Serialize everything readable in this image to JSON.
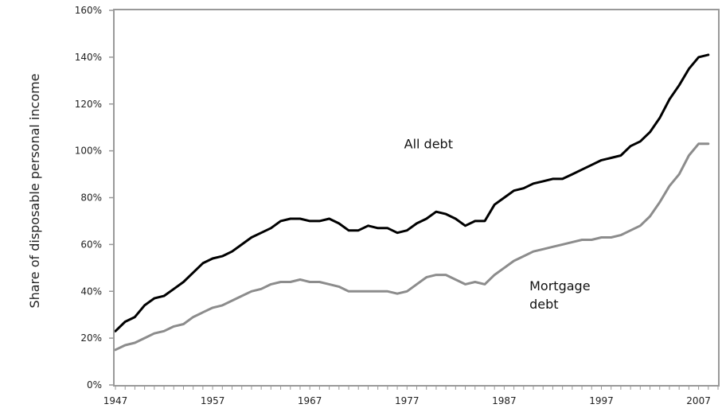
{
  "chart_data": {
    "type": "line",
    "title": "",
    "xlabel": "",
    "ylabel": "Share of disposable personal income",
    "xlim": [
      1947,
      2009
    ],
    "ylim": [
      0,
      160
    ],
    "y_ticks": [
      "0%",
      "20%",
      "40%",
      "60%",
      "80%",
      "100%",
      "120%",
      "140%",
      "160%"
    ],
    "y_tick_values": [
      0,
      20,
      40,
      60,
      80,
      100,
      120,
      140,
      160
    ],
    "x_ticks": [
      "1947",
      "1957",
      "1967",
      "1977",
      "1987",
      "1997",
      "2007"
    ],
    "x_tick_values": [
      1947,
      1957,
      1967,
      1977,
      1987,
      1997,
      2007
    ],
    "grid": false,
    "legend": "none",
    "annotations": [
      {
        "series": "all_debt",
        "lines": [
          "All debt"
        ],
        "x": 1976.7,
        "y": 101
      },
      {
        "series": "mortgage_debt",
        "lines": [
          "Mortgage",
          "debt"
        ],
        "x": 1989.6,
        "y": 40.5
      }
    ],
    "series": [
      {
        "key": "all_debt",
        "color": "#000000",
        "x": [
          1947,
          1948,
          1949,
          1950,
          1951,
          1952,
          1953,
          1954,
          1955,
          1956,
          1957,
          1958,
          1959,
          1960,
          1961,
          1962,
          1963,
          1964,
          1965,
          1966,
          1967,
          1968,
          1969,
          1970,
          1971,
          1972,
          1973,
          1974,
          1975,
          1976,
          1977,
          1978,
          1979,
          1980,
          1981,
          1982,
          1983,
          1984,
          1985,
          1986,
          1987,
          1988,
          1989,
          1990,
          1991,
          1992,
          1993,
          1994,
          1995,
          1996,
          1997,
          1998,
          1999,
          2000,
          2001,
          2002,
          2003,
          2004,
          2005,
          2006,
          2007,
          2008
        ],
        "values": [
          23,
          27,
          29,
          34,
          37,
          38,
          41,
          44,
          48,
          52,
          54,
          55,
          57,
          60,
          63,
          65,
          67,
          70,
          71,
          71,
          70,
          70,
          71,
          69,
          66,
          66,
          68,
          67,
          67,
          65,
          66,
          69,
          71,
          74,
          73,
          71,
          68,
          70,
          70,
          77,
          80,
          83,
          84,
          86,
          87,
          88,
          88,
          90,
          92,
          94,
          96,
          97,
          98,
          102,
          104,
          108,
          114,
          122,
          128,
          135,
          140,
          141
        ]
      },
      {
        "key": "mortgage_debt",
        "color": "#8c8c8c",
        "x": [
          1947,
          1948,
          1949,
          1950,
          1951,
          1952,
          1953,
          1954,
          1955,
          1956,
          1957,
          1958,
          1959,
          1960,
          1961,
          1962,
          1963,
          1964,
          1965,
          1966,
          1967,
          1968,
          1969,
          1970,
          1971,
          1972,
          1973,
          1974,
          1975,
          1976,
          1977,
          1978,
          1979,
          1980,
          1981,
          1982,
          1983,
          1984,
          1985,
          1986,
          1987,
          1988,
          1989,
          1990,
          1991,
          1992,
          1993,
          1994,
          1995,
          1996,
          1997,
          1998,
          1999,
          2000,
          2001,
          2002,
          2003,
          2004,
          2005,
          2006,
          2007,
          2008
        ],
        "values": [
          15,
          17,
          18,
          20,
          22,
          23,
          25,
          26,
          29,
          31,
          33,
          34,
          36,
          38,
          40,
          41,
          43,
          44,
          44,
          45,
          44,
          44,
          43,
          42,
          40,
          40,
          40,
          40,
          40,
          39,
          40,
          43,
          46,
          47,
          47,
          45,
          43,
          44,
          43,
          47,
          50,
          53,
          55,
          57,
          58,
          59,
          60,
          61,
          62,
          62,
          63,
          63,
          64,
          66,
          68,
          72,
          78,
          85,
          90,
          98,
          103,
          103
        ]
      }
    ]
  }
}
